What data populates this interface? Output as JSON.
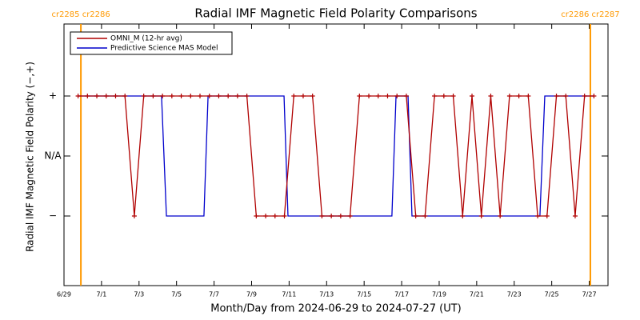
{
  "chart_data": {
    "type": "line",
    "title": "Radial IMF Magnetic Field Polarity Comparisons",
    "xlabel": "Month/Day from 2024-06-29 to 2024-07-27 (UT)",
    "ylabel": "Radial IMF Magnetic Field Polarity (−,+)",
    "xlim": [
      0,
      29
    ],
    "ylim": [
      -2.16,
      2.2
    ],
    "xticks": [
      {
        "value": 0,
        "label": "6/29"
      },
      {
        "value": 2,
        "label": "7/1"
      },
      {
        "value": 4,
        "label": "7/3"
      },
      {
        "value": 6,
        "label": "7/5"
      },
      {
        "value": 8,
        "label": "7/7"
      },
      {
        "value": 10,
        "label": "7/9"
      },
      {
        "value": 12,
        "label": "7/11"
      },
      {
        "value": 14,
        "label": "7/13"
      },
      {
        "value": 16,
        "label": "7/15"
      },
      {
        "value": 18,
        "label": "7/17"
      },
      {
        "value": 20,
        "label": "7/19"
      },
      {
        "value": 22,
        "label": "7/21"
      },
      {
        "value": 24,
        "label": "7/23"
      },
      {
        "value": 26,
        "label": "7/25"
      },
      {
        "value": 28,
        "label": "7/27"
      }
    ],
    "yticks": [
      {
        "value": 1,
        "label": "+"
      },
      {
        "value": 0,
        "label": "N/A"
      },
      {
        "value": -1,
        "label": "−"
      }
    ],
    "boundaries": [
      {
        "x": 0.9,
        "label": "cr2285 cr2286"
      },
      {
        "x": 28.06,
        "label": "cr2286 cr2287"
      }
    ],
    "boundary_color": "#ff9900",
    "series": [
      {
        "name": "OMNI_M (12-hr avg)",
        "color": "#b00000",
        "markers": true,
        "x": [
          0.75,
          1.25,
          1.75,
          2.25,
          2.75,
          3.25,
          3.75,
          4.25,
          4.75,
          5.25,
          5.75,
          6.25,
          6.75,
          7.25,
          7.75,
          8.25,
          8.75,
          9.25,
          9.75,
          10.25,
          10.75,
          11.25,
          11.75,
          12.25,
          12.75,
          13.25,
          13.75,
          14.25,
          14.75,
          15.25,
          15.75,
          16.25,
          16.75,
          17.25,
          17.75,
          18.25,
          18.75,
          19.25,
          19.75,
          20.25,
          20.75,
          21.25,
          21.75,
          22.25,
          22.75,
          23.25,
          23.75,
          24.25,
          24.75,
          25.25,
          25.75,
          26.25,
          26.75,
          27.25,
          27.75,
          28.25
        ],
        "values": [
          1,
          1,
          1,
          1,
          1,
          1,
          -1,
          1,
          1,
          1,
          1,
          1,
          1,
          1,
          1,
          1,
          1,
          1,
          1,
          -1,
          -1,
          -1,
          -1,
          1,
          1,
          1,
          -1,
          -1,
          -1,
          -1,
          1,
          1,
          1,
          1,
          1,
          1,
          -1,
          -1,
          1,
          1,
          1,
          -1,
          1,
          -1,
          1,
          -1,
          1,
          1,
          1,
          -1,
          -1,
          1,
          1,
          -1,
          1,
          1
        ]
      },
      {
        "name": "Predictive Science MAS Model",
        "color": "#0000cc",
        "markers": false,
        "x": [
          0.75,
          5.2,
          5.46,
          7.46,
          7.68,
          11.73,
          11.94,
          17.48,
          17.7,
          18.34,
          18.55,
          25.37,
          25.63,
          28.25
        ],
        "values": [
          1,
          1,
          -1,
          -1,
          1,
          1,
          -1,
          -1,
          1,
          1,
          -1,
          -1,
          1,
          1
        ]
      }
    ]
  }
}
